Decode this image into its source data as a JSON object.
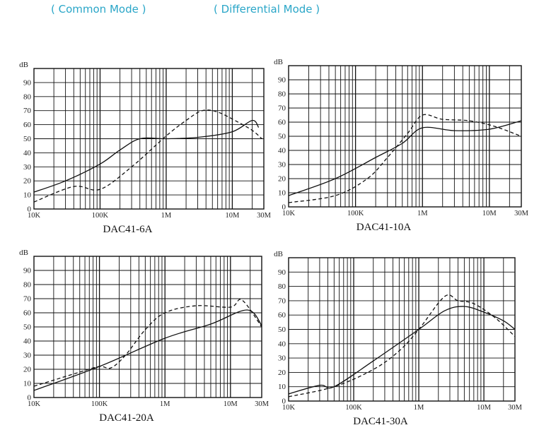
{
  "legend": {
    "common_label": "( Common Mode )",
    "differential_label": "( Differential Mode )",
    "color": "#2aa6c8"
  },
  "chart_data": [
    {
      "type": "line",
      "title": "DAC41-6A",
      "ylabel": "dB",
      "xscale": "log",
      "xlim": [
        10000,
        30000000
      ],
      "ylim": [
        0,
        100
      ],
      "x_ticks": [
        {
          "v": 10000,
          "label": "10K"
        },
        {
          "v": 100000,
          "label": "100K"
        },
        {
          "v": 1000000,
          "label": "1M"
        },
        {
          "v": 10000000,
          "label": "10M"
        },
        {
          "v": 30000000,
          "label": "30M"
        }
      ],
      "y_ticks": [
        0,
        10,
        20,
        30,
        40,
        50,
        60,
        70,
        80,
        90
      ],
      "series": [
        {
          "name": "Common Mode",
          "style": "solid",
          "points": [
            [
              10000,
              12
            ],
            [
              30000,
              20
            ],
            [
              100000,
              32
            ],
            [
              200000,
              42
            ],
            [
              400000,
              50
            ],
            [
              1000000,
              50
            ],
            [
              3000000,
              51
            ],
            [
              10000000,
              55
            ],
            [
              20000000,
              63
            ],
            [
              25000000,
              58
            ]
          ]
        },
        {
          "name": "Differential Mode",
          "style": "dashed",
          "points": [
            [
              10000,
              5
            ],
            [
              40000,
              16
            ],
            [
              100000,
              14
            ],
            [
              300000,
              30
            ],
            [
              1000000,
              52
            ],
            [
              2000000,
              63
            ],
            [
              3500000,
              70
            ],
            [
              6000000,
              69
            ],
            [
              12000000,
              62
            ],
            [
              20000000,
              56
            ],
            [
              28000000,
              50
            ]
          ]
        }
      ]
    },
    {
      "type": "line",
      "title": "DAC41-10A",
      "ylabel": "dB",
      "xscale": "log",
      "xlim": [
        10000,
        30000000
      ],
      "ylim": [
        0,
        100
      ],
      "x_ticks": [
        {
          "v": 10000,
          "label": "10K"
        },
        {
          "v": 100000,
          "label": "100K"
        },
        {
          "v": 1000000,
          "label": "1M"
        },
        {
          "v": 10000000,
          "label": "10M"
        },
        {
          "v": 30000000,
          "label": "30M"
        }
      ],
      "y_ticks": [
        0,
        10,
        20,
        30,
        40,
        50,
        60,
        70,
        80,
        90
      ],
      "series": [
        {
          "name": "Common Mode",
          "style": "solid",
          "points": [
            [
              10000,
              8
            ],
            [
              50000,
              20
            ],
            [
              200000,
              35
            ],
            [
              500000,
              45
            ],
            [
              1000000,
              56
            ],
            [
              3000000,
              54
            ],
            [
              10000000,
              55
            ],
            [
              30000000,
              61
            ]
          ]
        },
        {
          "name": "Differential Mode",
          "style": "dashed",
          "points": [
            [
              10000,
              3
            ],
            [
              50000,
              8
            ],
            [
              150000,
              20
            ],
            [
              300000,
              35
            ],
            [
              600000,
              52
            ],
            [
              1000000,
              65
            ],
            [
              2000000,
              62
            ],
            [
              5000000,
              61
            ],
            [
              12000000,
              57
            ],
            [
              30000000,
              50
            ]
          ]
        }
      ]
    },
    {
      "type": "line",
      "title": "DAC41-20A",
      "ylabel": "dB",
      "xscale": "log",
      "xlim": [
        10000,
        30000000
      ],
      "ylim": [
        0,
        100
      ],
      "x_ticks": [
        {
          "v": 10000,
          "label": "10K"
        },
        {
          "v": 100000,
          "label": "100K"
        },
        {
          "v": 1000000,
          "label": "1M"
        },
        {
          "v": 10000000,
          "label": "10M"
        },
        {
          "v": 30000000,
          "label": "30M"
        }
      ],
      "y_ticks": [
        0,
        10,
        20,
        30,
        40,
        50,
        60,
        70,
        80,
        90
      ],
      "series": [
        {
          "name": "Common Mode",
          "style": "solid",
          "points": [
            [
              10000,
              5
            ],
            [
              100000,
              22
            ],
            [
              1000000,
              42
            ],
            [
              5000000,
              52
            ],
            [
              18000000,
              62
            ],
            [
              30000000,
              51
            ]
          ]
        },
        {
          "name": "Differential Mode",
          "style": "dashed",
          "points": [
            [
              10000,
              8
            ],
            [
              50000,
              18
            ],
            [
              100000,
              22
            ],
            [
              150000,
              21
            ],
            [
              250000,
              30
            ],
            [
              500000,
              48
            ],
            [
              1000000,
              60
            ],
            [
              3000000,
              65
            ],
            [
              10000000,
              64
            ],
            [
              15000000,
              69
            ],
            [
              30000000,
              50
            ]
          ]
        }
      ]
    },
    {
      "type": "line",
      "title": "DAC41-30A",
      "ylabel": "dB",
      "xscale": "log",
      "xlim": [
        10000,
        30000000
      ],
      "ylim": [
        0,
        100
      ],
      "x_ticks": [
        {
          "v": 10000,
          "label": "10K"
        },
        {
          "v": 100000,
          "label": "100K"
        },
        {
          "v": 1000000,
          "label": "1M"
        },
        {
          "v": 10000000,
          "label": "10M"
        },
        {
          "v": 30000000,
          "label": "30M"
        }
      ],
      "y_ticks": [
        0,
        10,
        20,
        30,
        40,
        50,
        60,
        70,
        80,
        90
      ],
      "series": [
        {
          "name": "Common Mode",
          "style": "solid",
          "points": [
            [
              10000,
              5
            ],
            [
              30000,
              11
            ],
            [
              50000,
              10
            ],
            [
              200000,
              28
            ],
            [
              1000000,
              50
            ],
            [
              2500000,
              63
            ],
            [
              5000000,
              66
            ],
            [
              10000000,
              62
            ],
            [
              20000000,
              56
            ],
            [
              30000000,
              50
            ]
          ]
        },
        {
          "name": "Differential Mode",
          "style": "dashed",
          "points": [
            [
              10000,
              3
            ],
            [
              50000,
              10
            ],
            [
              200000,
              22
            ],
            [
              500000,
              35
            ],
            [
              1000000,
              50
            ],
            [
              2500000,
              73
            ],
            [
              4000000,
              70
            ],
            [
              7000000,
              68
            ],
            [
              15000000,
              58
            ],
            [
              30000000,
              45
            ]
          ]
        }
      ]
    }
  ]
}
